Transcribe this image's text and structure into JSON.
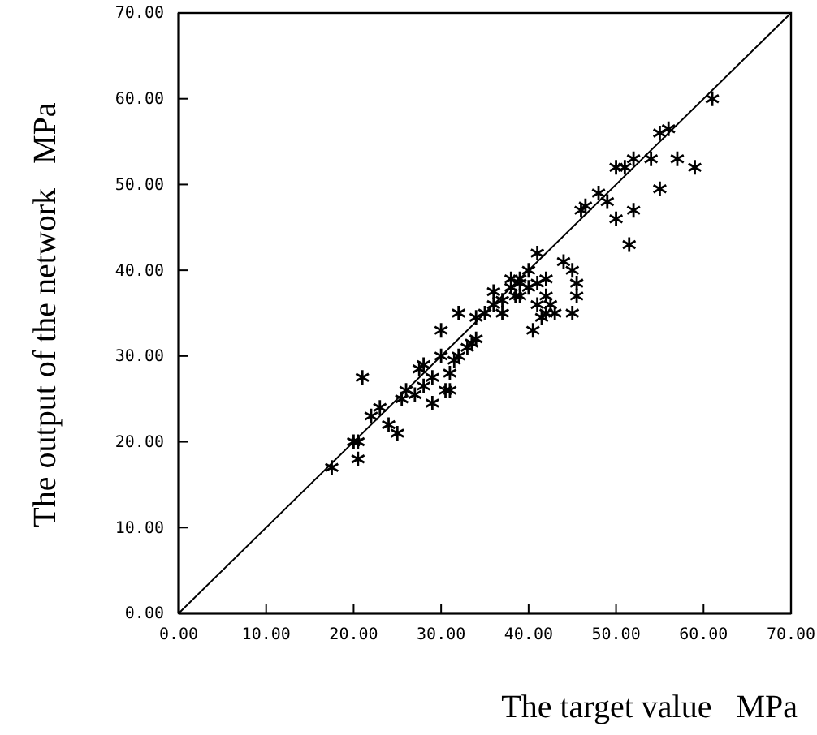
{
  "chart_data": {
    "type": "scatter",
    "xlabel": "The target value   MPa",
    "ylabel": "The output of the network   MPa",
    "xlim": [
      0,
      70
    ],
    "ylim": [
      0,
      70
    ],
    "xticks": [
      {
        "value": 0,
        "label": "0.00"
      },
      {
        "value": 10,
        "label": "10.00"
      },
      {
        "value": 20,
        "label": "20.00"
      },
      {
        "value": 30,
        "label": "30.00"
      },
      {
        "value": 40,
        "label": "40.00"
      },
      {
        "value": 50,
        "label": "50.00"
      },
      {
        "value": 60,
        "label": "60.00"
      },
      {
        "value": 70,
        "label": "70.00"
      }
    ],
    "yticks": [
      {
        "value": 0,
        "label": "0.00"
      },
      {
        "value": 10,
        "label": "10.00"
      },
      {
        "value": 20,
        "label": "20.00"
      },
      {
        "value": 30,
        "label": "30.00"
      },
      {
        "value": 40,
        "label": "40.00"
      },
      {
        "value": 50,
        "label": "50.00"
      },
      {
        "value": 60,
        "label": "60.00"
      },
      {
        "value": 70,
        "label": "70.00"
      }
    ],
    "grid": false,
    "series": [
      {
        "marker": "cross",
        "color": "#000000",
        "x": [
          17.5,
          20,
          20.5,
          20.5,
          21,
          22,
          23,
          24,
          25,
          25.5,
          26,
          27,
          27.5,
          28,
          28,
          29,
          29,
          30,
          30,
          30.5,
          31,
          31,
          31.5,
          32,
          32,
          33,
          33.5,
          34,
          34,
          35,
          36,
          36,
          37,
          37,
          38,
          38.5,
          39,
          39,
          40,
          40,
          40.5,
          41,
          41,
          41.5,
          41,
          42,
          42,
          42,
          42.5,
          43,
          44,
          45,
          45.5,
          45.5,
          45,
          46,
          46.5,
          48,
          49,
          50,
          50,
          51,
          51.5,
          52,
          52,
          54,
          55,
          55,
          56,
          57,
          59,
          61,
          38,
          39
        ],
        "values": [
          17,
          20,
          20,
          18,
          27.5,
          23,
          24,
          22,
          21,
          25,
          26,
          25.5,
          28.5,
          29,
          26.5,
          24.5,
          27.5,
          30,
          33,
          26,
          26,
          28,
          29.5,
          35,
          30,
          31,
          31.5,
          34.5,
          32,
          35,
          37.5,
          36,
          36.5,
          35,
          38,
          37,
          39,
          37,
          40,
          38,
          33,
          42,
          36,
          34.5,
          38.5,
          39,
          37,
          35,
          36,
          35,
          41,
          40,
          38.5,
          37,
          35,
          47,
          47.5,
          49,
          48,
          46,
          52,
          52,
          43,
          53,
          47,
          53,
          56,
          49.5,
          56.5,
          53,
          52,
          60,
          39,
          38.5
        ]
      },
      {
        "type": "line",
        "color": "#000000",
        "x": [
          0,
          70
        ],
        "values": [
          0,
          70
        ]
      }
    ]
  }
}
